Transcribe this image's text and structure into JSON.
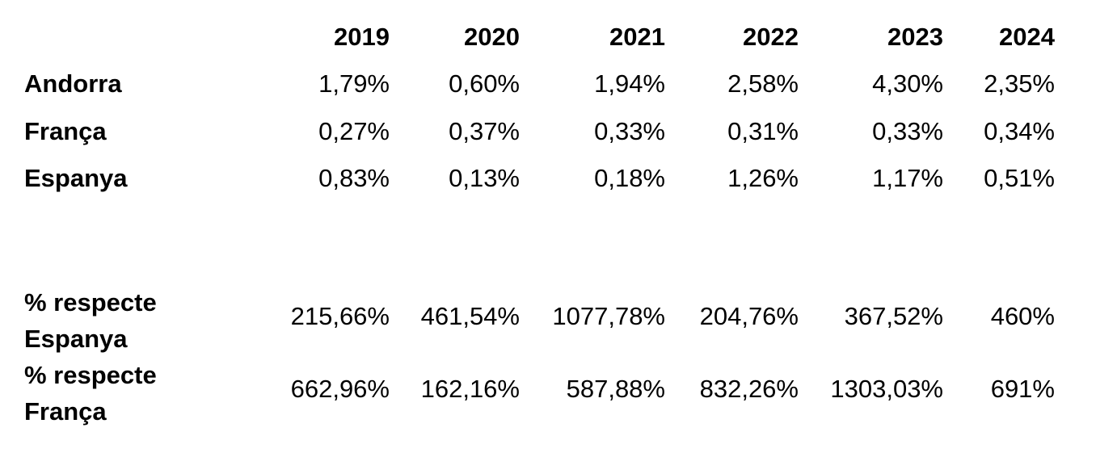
{
  "table": {
    "years": [
      "2019",
      "2020",
      "2021",
      "2022",
      "2023",
      "2024"
    ],
    "rows": [
      {
        "label": "Andorra",
        "values": [
          "1,79%",
          "0,60%",
          "1,94%",
          "2,58%",
          "4,30%",
          "2,35%"
        ]
      },
      {
        "label": "França",
        "values": [
          "0,27%",
          "0,37%",
          "0,33%",
          "0,31%",
          "0,33%",
          "0,34%"
        ]
      },
      {
        "label": "Espanya",
        "values": [
          "0,83%",
          "0,13%",
          "0,18%",
          "1,26%",
          "1,17%",
          "0,51%"
        ]
      }
    ],
    "ratio_rows": [
      {
        "label_line1": "% respecte",
        "label_line2": "Espanya",
        "values": [
          "215,66%",
          "461,54%",
          "1077,78%",
          "204,76%",
          "367,52%",
          "460%"
        ]
      },
      {
        "label_line1": "% respecte",
        "label_line2": "França",
        "values": [
          "662,96%",
          "162,16%",
          "587,88%",
          "832,26%",
          "1303,03%",
          "691%"
        ]
      }
    ]
  }
}
